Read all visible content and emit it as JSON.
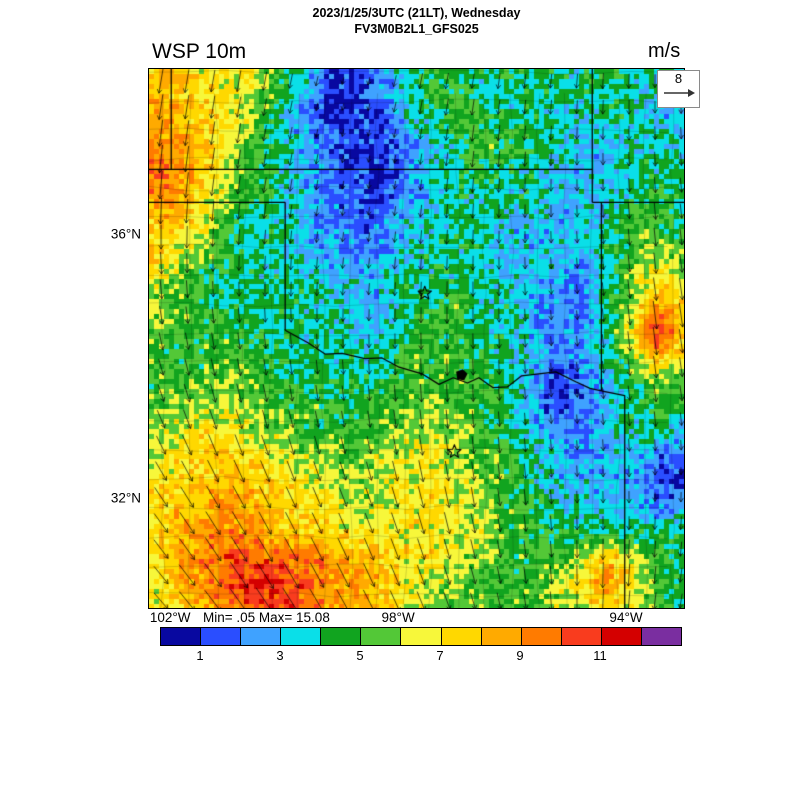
{
  "header": {
    "datetime": "2023/1/25/3UTC (21LT), Wednesday",
    "model": "FV3M0B2L1_GFS025",
    "variable": "WSP 10m",
    "units": "m/s"
  },
  "chart_data": {
    "type": "heatmap",
    "title": "WSP 10m",
    "subtitle": "FV3M0B2L1_GFS025",
    "units": "m/s",
    "min": 0.05,
    "max": 15.08,
    "minmax_text": "Min= .05 Max= 15.08",
    "reference_vector": {
      "label": "8",
      "value": 8
    },
    "extent": {
      "lon": [
        -102.39,
        -93.0
      ],
      "lat": [
        30.35,
        38.52
      ]
    },
    "axes": {
      "lat_ticks": [
        {
          "label": "36°N",
          "value": 36
        },
        {
          "label": "32°N",
          "value": 32
        }
      ],
      "lon_ticks": [
        {
          "label": "102°W",
          "value": -102
        },
        {
          "label": "98°W",
          "value": -98
        },
        {
          "label": "94°W",
          "value": -94
        }
      ]
    },
    "colorbar": {
      "levels": [
        0,
        1,
        2,
        3,
        4,
        5,
        6,
        7,
        8,
        9,
        10,
        11,
        12,
        13
      ],
      "colors": [
        "#0808a0",
        "#2a4eff",
        "#3fa2ff",
        "#0adfe8",
        "#11a41f",
        "#53c837",
        "#f7f73a",
        "#ffd800",
        "#ffaa00",
        "#ff7b00",
        "#f93c1e",
        "#d40000",
        "#7a2ea0"
      ],
      "tick_values": [
        1,
        3,
        5,
        7,
        9,
        11
      ],
      "tick_labels": [
        "1",
        "3",
        "5",
        "7",
        "9",
        "11"
      ]
    },
    "grid": {
      "nx": 22,
      "ny": 22,
      "description": "10 m wind speed (m/s), approximate values on a 22x22 grid covering the plotted domain, row 0 = north",
      "values": [
        [
          8,
          8,
          7,
          7,
          7,
          5,
          4,
          2,
          1,
          2,
          4,
          5,
          4,
          4,
          5,
          4,
          4,
          4,
          5,
          4,
          4,
          4
        ],
        [
          8,
          8,
          7,
          7,
          6,
          5,
          3,
          1,
          1,
          2,
          3,
          5,
          5,
          4,
          4,
          4,
          4,
          4,
          4,
          4,
          3,
          4
        ],
        [
          9,
          8,
          8,
          7,
          6,
          4,
          2,
          1,
          1,
          1,
          3,
          4,
          5,
          5,
          4,
          4,
          4,
          3,
          4,
          4,
          3,
          3
        ],
        [
          9,
          9,
          8,
          7,
          5,
          4,
          3,
          2,
          1,
          1,
          2,
          3,
          4,
          5,
          5,
          4,
          4,
          3,
          3,
          4,
          4,
          3
        ],
        [
          10,
          9,
          8,
          6,
          5,
          4,
          3,
          2,
          1,
          1,
          2,
          3,
          4,
          5,
          4,
          4,
          3,
          3,
          3,
          4,
          4,
          4
        ],
        [
          9,
          9,
          7,
          6,
          5,
          4,
          3,
          2,
          2,
          1,
          2,
          3,
          4,
          4,
          4,
          4,
          3,
          3,
          3,
          4,
          5,
          4
        ],
        [
          8,
          8,
          7,
          5,
          4,
          4,
          3,
          2,
          2,
          2,
          3,
          4,
          4,
          4,
          3,
          3,
          3,
          3,
          4,
          5,
          5,
          4
        ],
        [
          8,
          7,
          6,
          5,
          4,
          4,
          3,
          3,
          2,
          2,
          3,
          4,
          4,
          4,
          3,
          3,
          3,
          3,
          4,
          5,
          6,
          5
        ],
        [
          7,
          6,
          5,
          4,
          4,
          4,
          4,
          3,
          3,
          3,
          4,
          4,
          4,
          4,
          3,
          3,
          3,
          2,
          4,
          6,
          7,
          6
        ],
        [
          6,
          5,
          5,
          4,
          4,
          4,
          4,
          4,
          3,
          3,
          4,
          4,
          5,
          4,
          4,
          3,
          2,
          2,
          4,
          6,
          8,
          7
        ],
        [
          6,
          5,
          5,
          5,
          4,
          4,
          4,
          4,
          3,
          3,
          4,
          5,
          5,
          4,
          4,
          3,
          2,
          2,
          4,
          7,
          11,
          8
        ],
        [
          5,
          5,
          5,
          5,
          5,
          4,
          4,
          4,
          4,
          4,
          5,
          5,
          5,
          4,
          4,
          3,
          2,
          3,
          4,
          6,
          9,
          7
        ],
        [
          5,
          5,
          5,
          6,
          5,
          5,
          4,
          4,
          4,
          4,
          5,
          5,
          5,
          5,
          4,
          3,
          1,
          2,
          3,
          5,
          6,
          5
        ],
        [
          5,
          6,
          6,
          6,
          6,
          5,
          5,
          5,
          4,
          5,
          5,
          6,
          5,
          5,
          4,
          3,
          1,
          2,
          3,
          4,
          5,
          4
        ],
        [
          6,
          6,
          7,
          7,
          6,
          6,
          5,
          5,
          5,
          5,
          6,
          6,
          6,
          5,
          4,
          3,
          2,
          2,
          3,
          4,
          4,
          3
        ],
        [
          6,
          7,
          7,
          8,
          7,
          7,
          6,
          6,
          5,
          6,
          6,
          7,
          6,
          5,
          5,
          4,
          3,
          2,
          3,
          3,
          2,
          2
        ],
        [
          7,
          7,
          8,
          8,
          8,
          7,
          7,
          6,
          6,
          6,
          7,
          7,
          6,
          6,
          5,
          4,
          3,
          3,
          3,
          3,
          1,
          1
        ],
        [
          7,
          8,
          8,
          9,
          8,
          8,
          7,
          7,
          6,
          6,
          7,
          7,
          7,
          6,
          5,
          5,
          4,
          3,
          3,
          3,
          2,
          3
        ],
        [
          7,
          8,
          9,
          9,
          9,
          8,
          8,
          7,
          7,
          7,
          7,
          7,
          7,
          6,
          5,
          5,
          4,
          4,
          4,
          4,
          4,
          4
        ],
        [
          7,
          8,
          9,
          10,
          10,
          10,
          9,
          9,
          8,
          8,
          7,
          7,
          6,
          6,
          5,
          5,
          5,
          6,
          8,
          6,
          5,
          4
        ],
        [
          6,
          8,
          9,
          10,
          11,
          11,
          10,
          9,
          9,
          8,
          7,
          6,
          6,
          5,
          5,
          5,
          6,
          7,
          9,
          7,
          5,
          4
        ],
        [
          6,
          7,
          8,
          9,
          10,
          11,
          10,
          9,
          8,
          8,
          7,
          6,
          5,
          5,
          5,
          5,
          6,
          6,
          8,
          6,
          5,
          4
        ]
      ]
    },
    "wind_direction_screen_deg": [
      [
        100,
        100,
        105,
        100,
        95,
        90
      ],
      [
        95,
        100,
        100,
        95,
        90,
        85
      ],
      [
        85,
        90,
        95,
        90,
        85,
        82
      ],
      [
        70,
        78,
        85,
        88,
        85,
        82
      ],
      [
        55,
        62,
        70,
        80,
        88,
        92
      ],
      [
        48,
        55,
        62,
        72,
        90,
        100
      ]
    ],
    "map": {
      "borders": [
        {
          "name": "co-ks-102w",
          "pts": [
            [
              -102,
              38.52
            ],
            [
              -102,
              37
            ]
          ]
        },
        {
          "name": "ks-south-37n",
          "pts": [
            [
              -102.39,
              37
            ],
            [
              -94.61,
              37
            ]
          ]
        },
        {
          "name": "tx-ok-panhandle-36.5n",
          "pts": [
            [
              -102.39,
              36.5
            ],
            [
              -100,
              36.5
            ]
          ]
        },
        {
          "name": "ok-west-100w",
          "pts": [
            [
              -100,
              36.5
            ],
            [
              -100,
              34.56
            ]
          ]
        },
        {
          "name": "red-river",
          "pts": [
            [
              -100,
              34.56
            ],
            [
              -99.6,
              34.37
            ],
            [
              -99.3,
              34.2
            ],
            [
              -99.0,
              34.21
            ],
            [
              -98.6,
              34.13
            ],
            [
              -98.3,
              34.14
            ],
            [
              -98.0,
              34.0
            ],
            [
              -97.6,
              33.9
            ],
            [
              -97.3,
              33.74
            ],
            [
              -97.05,
              33.84
            ],
            [
              -96.8,
              33.76
            ],
            [
              -96.6,
              33.84
            ],
            [
              -96.35,
              33.69
            ],
            [
              -96.1,
              33.7
            ],
            [
              -95.85,
              33.87
            ],
            [
              -95.55,
              33.9
            ],
            [
              -95.25,
              33.93
            ],
            [
              -94.9,
              33.78
            ],
            [
              -94.65,
              33.68
            ],
            [
              -94.45,
              33.64
            ]
          ]
        },
        {
          "name": "mo-west-94.6w",
          "pts": [
            [
              -94.61,
              38.52
            ],
            [
              -94.61,
              36.5
            ]
          ]
        },
        {
          "name": "ok-ar-94.45w",
          "pts": [
            [
              -94.45,
              36.5
            ],
            [
              -94.45,
              33.64
            ]
          ]
        },
        {
          "name": "mo-ar-36.5n",
          "pts": [
            [
              -94.61,
              36.5
            ],
            [
              -93.0,
              36.5
            ]
          ]
        },
        {
          "name": "tx-ar-la-94w",
          "pts": [
            [
              -94.45,
              33.64
            ],
            [
              -94.04,
              33.57
            ],
            [
              -94.04,
              30.35
            ]
          ]
        }
      ],
      "lake": {
        "name": "lake",
        "pts": [
          [
            -97.0,
            33.93
          ],
          [
            -96.88,
            33.97
          ],
          [
            -96.8,
            33.9
          ],
          [
            -96.86,
            33.8
          ],
          [
            -96.98,
            33.82
          ]
        ]
      },
      "city_markers": [
        {
          "lon": -97.55,
          "lat": 35.12
        },
        {
          "lon": -97.03,
          "lat": 32.72
        }
      ]
    }
  }
}
